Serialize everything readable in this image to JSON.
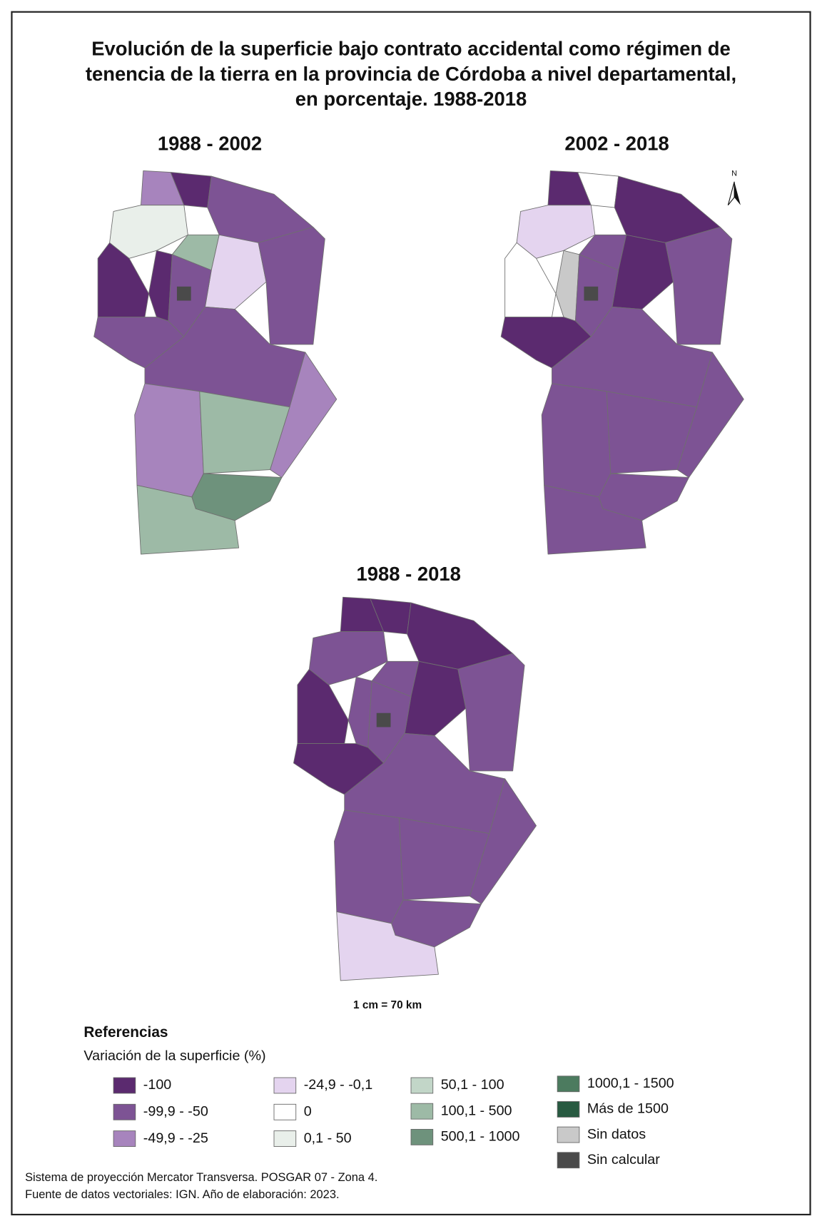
{
  "title": [
    "Evolución de la superficie bajo contrato accidental como régimen de",
    "tenencia de la tierra en la provincia de Córdoba a nivel departamental,",
    "en porcentaje. 1988-2018"
  ],
  "maps": [
    {
      "title": "1988 - 2002"
    },
    {
      "title": "2002 - 2018"
    },
    {
      "title": "1988 - 2018"
    }
  ],
  "north": "N",
  "scale": "1 cm = 70 km",
  "legend": {
    "title": "Referencias",
    "subtitle": "Variación de la superficie  (%)",
    "items": [
      {
        "label": "-100",
        "color": "#5b2a6f"
      },
      {
        "label": "-99,9 - -50",
        "color": "#7d5394"
      },
      {
        "label": "-49,9 - -25",
        "color": "#a784bd"
      },
      {
        "label": "-24,9 - -0,1",
        "color": "#e4d4ef"
      },
      {
        "label": "0",
        "color": "#ffffff"
      },
      {
        "label": "0,1 - 50",
        "color": "#e9efea"
      },
      {
        "label": "50,1 - 100",
        "color": "#c2d6c8"
      },
      {
        "label": "100,1 - 500",
        "color": "#9dbaa6"
      },
      {
        "label": "500,1 - 1000",
        "color": "#6e927c"
      },
      {
        "label": "1000,1 - 1500",
        "color": "#4c7b5f"
      },
      {
        "label": "Más de 1500",
        "color": "#285a41"
      },
      {
        "label": "Sin datos",
        "color": "#c9c9c9"
      },
      {
        "label": "Sin calcular",
        "color": "#4a4a4a"
      }
    ]
  },
  "footer": [
    "Sistema de proyección Mercator Transversa. POSGAR 07 - Zona 4.",
    "Fuente de datos vectoriales: IGN. Año de elaboración: 2023."
  ]
}
